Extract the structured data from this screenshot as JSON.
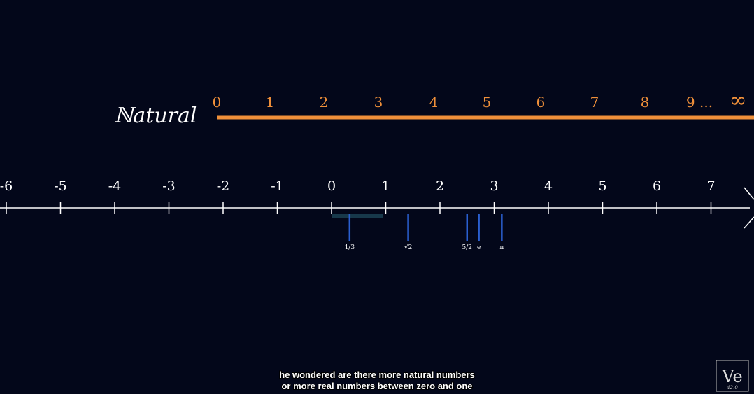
{
  "natural": {
    "label": "ℕatural",
    "numbers": [
      "0",
      "1",
      "2",
      "3",
      "4",
      "5",
      "6",
      "7",
      "8",
      "9 ...",
      "∞"
    ]
  },
  "real_line": {
    "ticks": [
      -6,
      -5,
      -4,
      -3,
      -2,
      -1,
      0,
      1,
      2,
      3,
      4,
      5,
      6,
      7
    ],
    "markers": [
      {
        "label": "1/3",
        "value": 0.333
      },
      {
        "label": "√2",
        "value": 1.414
      },
      {
        "label": "5/2",
        "value": 2.5
      },
      {
        "label": "e",
        "value": 2.718
      },
      {
        "label": "π",
        "value": 3.14
      }
    ]
  },
  "caption": [
    "he wondered are there more natural numbers",
    "or more real numbers between zero and one"
  ],
  "logo": {
    "mark": "Ve",
    "version": "42.0"
  }
}
